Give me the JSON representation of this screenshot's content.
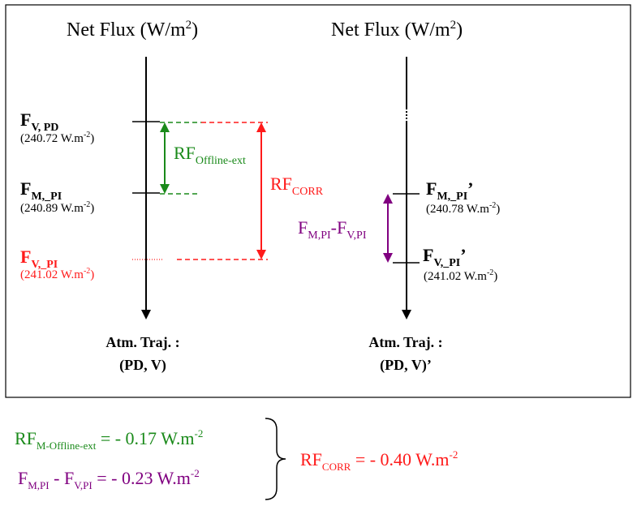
{
  "colors": {
    "black": "#000000",
    "green": "#1a8a1a",
    "red": "#ff1a1a",
    "purple": "#800080"
  },
  "left_panel": {
    "title": {
      "main": "Net Flux (W/m",
      "sup": "2",
      "close": ")"
    },
    "levels": {
      "fv_pd": {
        "main": "F",
        "sub": "V, PD",
        "value": "(240.72 W.m",
        "value_sup": "-2",
        "value_close": ")"
      },
      "fm_pi": {
        "main": "F",
        "sub": "M,_PI",
        "value": "(240.89 W.m",
        "value_sup": "-2",
        "value_close": ")"
      },
      "fv_pi": {
        "main": "F",
        "sub": "V,_PI",
        "value": "(241.02 W.m",
        "value_sup": "-2",
        "value_close": ")"
      }
    },
    "rf_offline": {
      "main": "RF",
      "sub": "Offline-ext"
    },
    "rf_corr": {
      "main": "RF",
      "sub": "CORR"
    },
    "trajectory": {
      "line1": "Atm. Traj. :",
      "line2": "(PD, V)"
    }
  },
  "right_panel": {
    "title": {
      "main": "Net Flux (W/m",
      "sup": "2",
      "close": ")"
    },
    "levels": {
      "fm_pi": {
        "main": "F",
        "sub": "M,_PI",
        "prime": "’",
        "value": "(240.78 W.m",
        "value_sup": "-2",
        "value_close": ")"
      },
      "fv_pi": {
        "main": "F",
        "sub": "V,_PI",
        "prime": "’",
        "value": "(241.02 W.m",
        "value_sup": "-2",
        "value_close": ")"
      }
    },
    "diff": {
      "a": "F",
      "a_sub": "M,PI",
      "dash": "-",
      "b": "F",
      "b_sub": "V,PI"
    },
    "trajectory": {
      "line1": "Atm. Traj. :",
      "line2": "(PD, V)’"
    }
  },
  "equations": {
    "eq1": {
      "main": "RF",
      "sub": "M-Offline-ext",
      "rest": " = - 0.17 W.m",
      "sup": "-2"
    },
    "eq2": {
      "a": "F",
      "a_sub": "M,PI",
      "mid": " - F",
      "b_sub": "V,PI",
      "rest": " = - 0.23 W.m",
      "sup": "-2"
    },
    "result": {
      "main": "RF",
      "sub": "CORR",
      "rest": " = - 0.40 W.m",
      "sup": "-2"
    }
  }
}
